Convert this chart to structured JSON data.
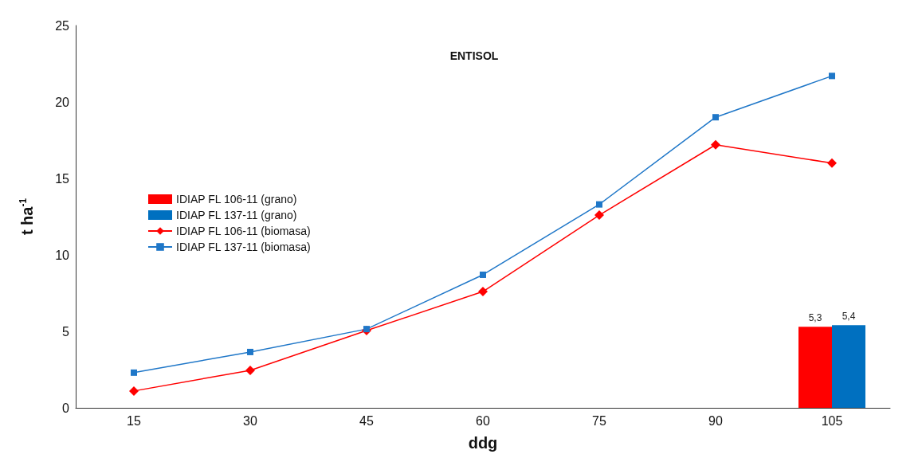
{
  "chart_data": {
    "type": "line",
    "title": "ENTISOL",
    "xlabel": "ddg",
    "ylabel": "t ha$^{-1}$",
    "categories": [
      "15",
      "30",
      "45",
      "60",
      "75",
      "90",
      "105"
    ],
    "series": [
      {
        "name": "IDIAP FL 106-11 (grano)",
        "type": "bar",
        "color": "#ff0000",
        "values": [
          null,
          null,
          null,
          null,
          null,
          null,
          5.3
        ],
        "value_labels": [
          null,
          null,
          null,
          null,
          null,
          null,
          "5,3"
        ]
      },
      {
        "name": "IDIAP FL 137-11 (grano)",
        "type": "bar",
        "color": "#0070c0",
        "values": [
          null,
          null,
          null,
          null,
          null,
          null,
          5.4
        ],
        "value_labels": [
          null,
          null,
          null,
          null,
          null,
          null,
          "5,4"
        ]
      },
      {
        "name": "IDIAP FL 106-11 (biomasa)",
        "color": "#ff0000",
        "marker": "diamond",
        "values": [
          1.1,
          2.45,
          5.05,
          7.6,
          12.6,
          17.2,
          16.0
        ]
      },
      {
        "name": "IDIAP FL 137-11 (biomasa)",
        "color": "#1f77c8",
        "marker": "square",
        "values": [
          2.3,
          3.65,
          5.15,
          8.7,
          13.3,
          19.0,
          21.7
        ]
      }
    ],
    "ylim": [
      0,
      25
    ],
    "yticks": [
      0,
      5,
      10,
      15,
      20,
      25
    ],
    "grid": false,
    "legend": "left"
  }
}
